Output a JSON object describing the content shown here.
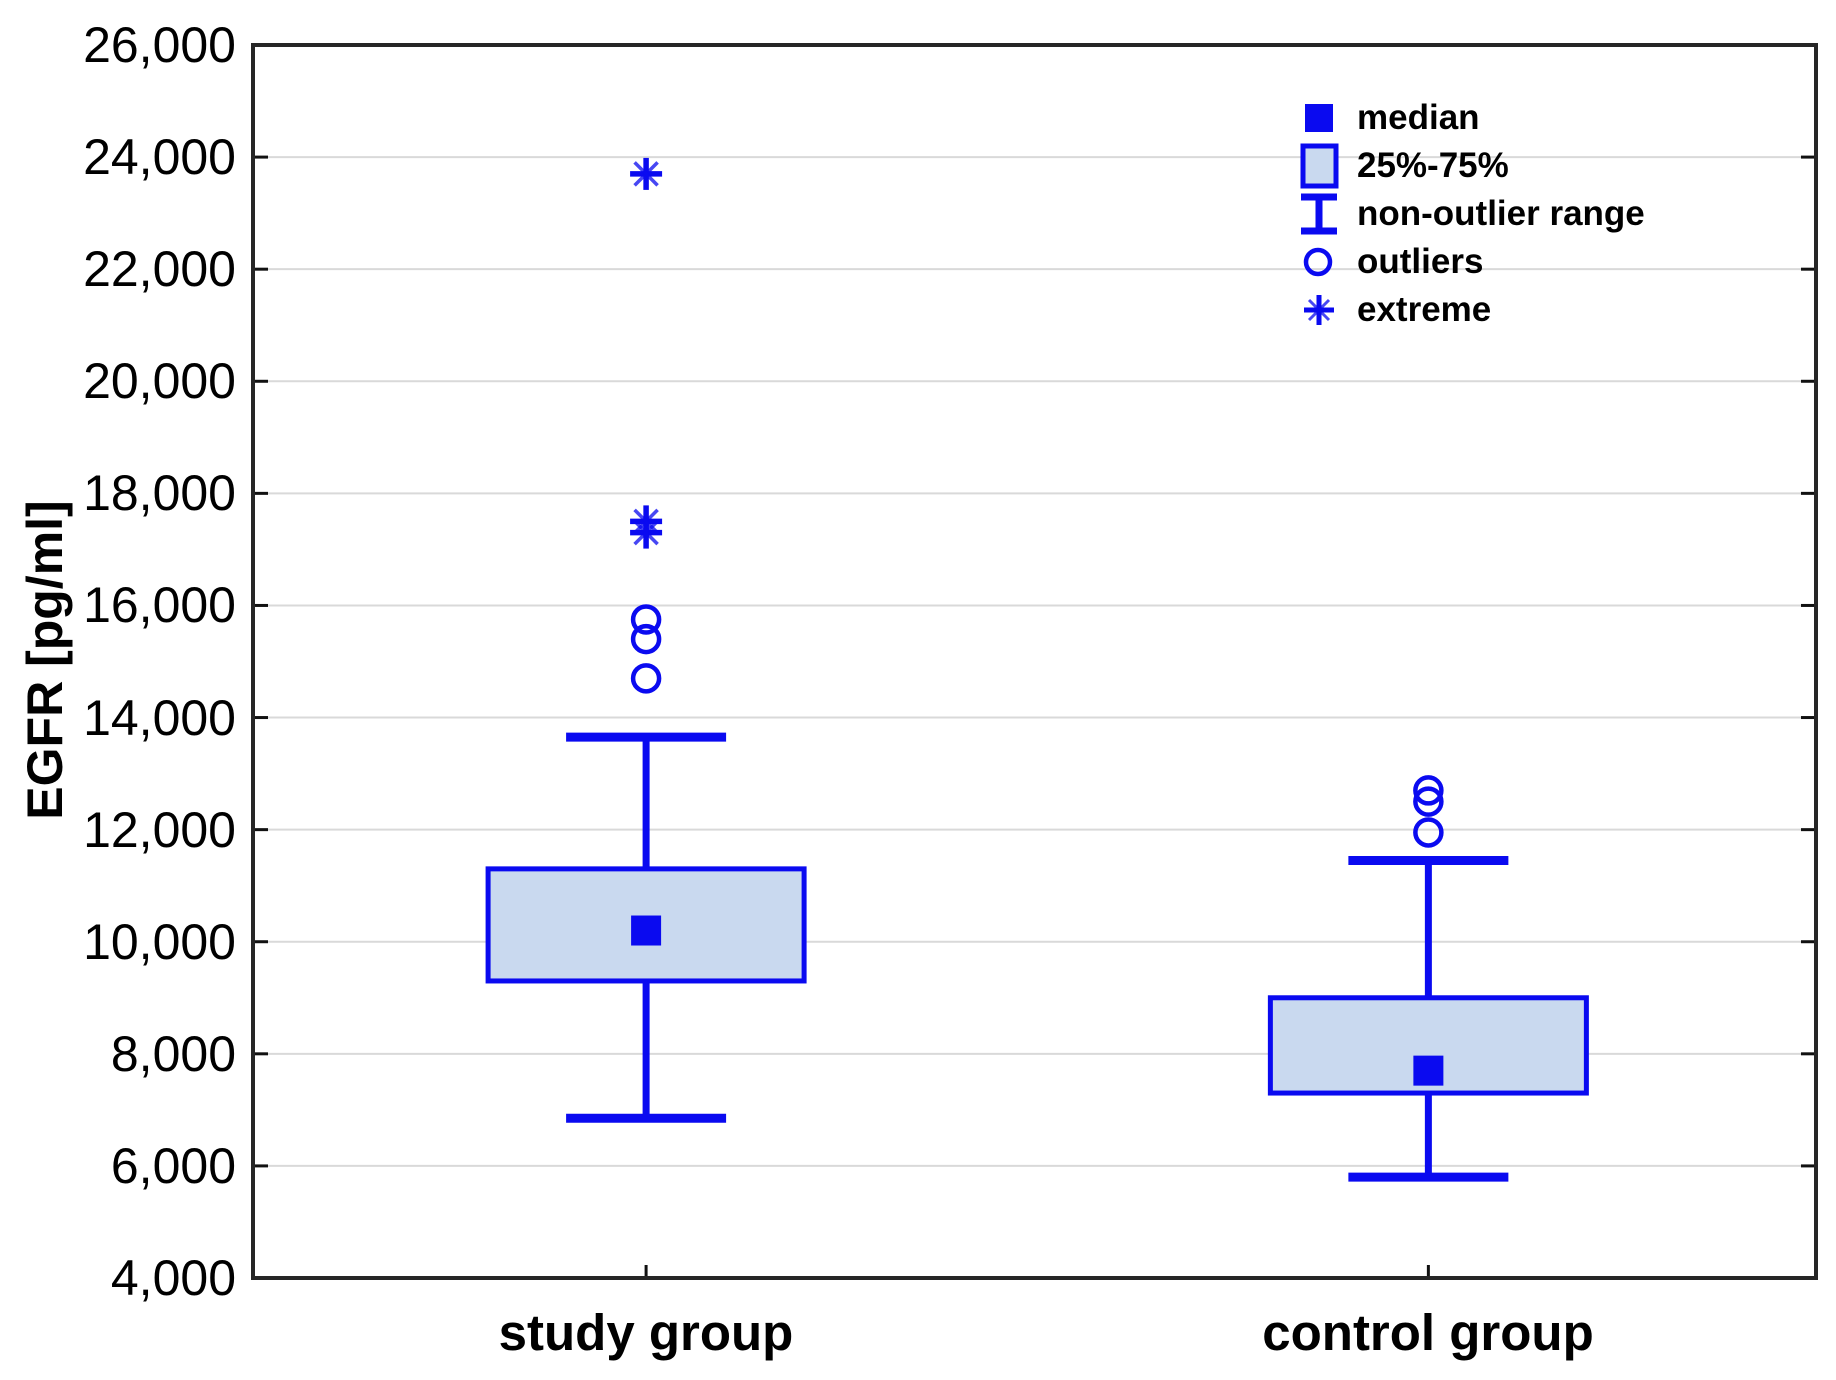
{
  "figure": {
    "ylabel": "EGFR [pg/ml]",
    "legend": [
      {
        "marker": "median-square",
        "label": "median"
      },
      {
        "marker": "iqr-box",
        "label": "25%-75%"
      },
      {
        "marker": "whisker-ibeam",
        "label": "non-outlier range"
      },
      {
        "marker": "outlier-circle",
        "label": "outliers"
      },
      {
        "marker": "extreme-asterisk",
        "label": "extreme"
      }
    ],
    "colors": {
      "series_blue": "#0a0af0",
      "box_fill": "#c9d9ef",
      "gridline": "#d9d9d9",
      "axis_frame": "#262626",
      "tick": "#111111",
      "text": "#000000",
      "background": "#ffffff"
    }
  },
  "chart_data": {
    "type": "boxplot",
    "title": "",
    "ylabel": "EGFR [pg/ml]",
    "xlabel": "",
    "ylim": [
      4000,
      26000
    ],
    "ytick_step": 2000,
    "ytick_labels": [
      "4,000",
      "6,000",
      "8,000",
      "10,000",
      "12,000",
      "14,000",
      "16,000",
      "18,000",
      "20,000",
      "22,000",
      "24,000",
      "26,000"
    ],
    "categories": [
      "study group",
      "control group"
    ],
    "grid": "horizontal",
    "legend_position": "top-right",
    "series": [
      {
        "name": "study group",
        "median": 10200,
        "q1": 9300,
        "q3": 11300,
        "whisker_low": 6850,
        "whisker_high": 13650,
        "outliers": [
          14700,
          15400,
          15750
        ],
        "extremes": [
          17300,
          17500,
          23700
        ]
      },
      {
        "name": "control group",
        "median": 7700,
        "q1": 7300,
        "q3": 9000,
        "whisker_low": 5800,
        "whisker_high": 11450,
        "outliers": [
          11950,
          12500,
          12700
        ],
        "extremes": []
      }
    ]
  }
}
